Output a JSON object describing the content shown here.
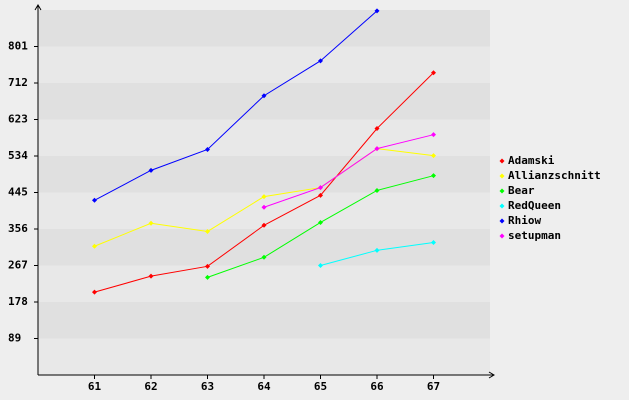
{
  "chart_data": {
    "type": "line",
    "x": [
      61,
      62,
      63,
      64,
      65,
      66,
      67
    ],
    "xlim": [
      60,
      68
    ],
    "xticks": [
      61,
      62,
      63,
      64,
      65,
      66,
      67
    ],
    "ylim": [
      0,
      890
    ],
    "yticks": [
      89,
      178,
      267,
      356,
      445,
      534,
      623,
      712,
      801
    ],
    "grid": true,
    "legend": "right",
    "series": [
      {
        "name": "Adamski",
        "color": "#ff0000",
        "values": [
          202,
          241,
          265,
          365,
          438,
          601,
          737
        ]
      },
      {
        "name": "Allianzschnitt",
        "color": "#ffff00",
        "values": [
          314,
          370,
          350,
          435,
          457,
          552,
          535
        ]
      },
      {
        "name": "Bear",
        "color": "#00ff00",
        "values": [
          null,
          null,
          238,
          287,
          372,
          450,
          486
        ]
      },
      {
        "name": "RedQueen",
        "color": "#00ffff",
        "values": [
          null,
          null,
          null,
          null,
          267,
          304,
          323
        ]
      },
      {
        "name": "Rhiow",
        "color": "#0000ff",
        "values": [
          426,
          499,
          550,
          681,
          766,
          888,
          null
        ]
      },
      {
        "name": "setupman",
        "color": "#ff00ff",
        "values": [
          null,
          null,
          null,
          409,
          457,
          552,
          586
        ]
      }
    ]
  }
}
